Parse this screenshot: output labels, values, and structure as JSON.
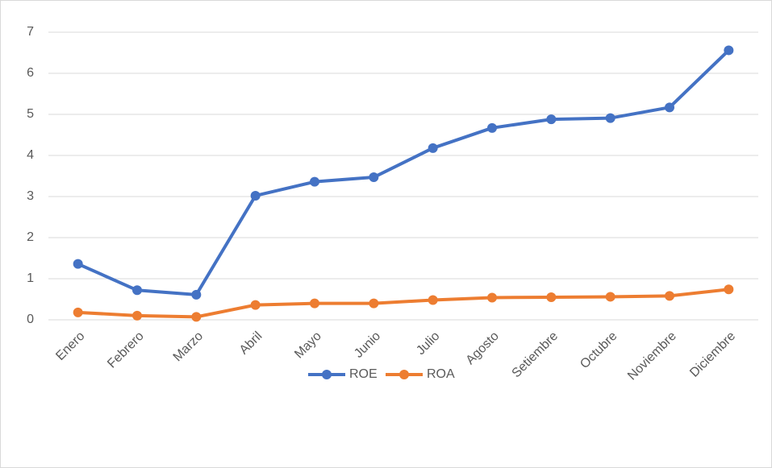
{
  "chart_data": {
    "type": "line",
    "categories": [
      "Enero",
      "Febrero",
      "Marzo",
      "Abril",
      "Mayo",
      "Junio",
      "Julio",
      "Agosto",
      "Setiembre",
      "Octubre",
      "Noviembre",
      "Diciembre"
    ],
    "series": [
      {
        "name": "ROE",
        "color": "#4472c4",
        "values": [
          1.36,
          0.72,
          0.61,
          3.02,
          3.36,
          3.47,
          4.18,
          4.67,
          4.88,
          4.91,
          5.17,
          6.56
        ]
      },
      {
        "name": "ROA",
        "color": "#ed7d31",
        "values": [
          0.18,
          0.1,
          0.07,
          0.36,
          0.4,
          0.4,
          0.48,
          0.54,
          0.55,
          0.56,
          0.58,
          0.74
        ]
      }
    ],
    "ylim": [
      0,
      7
    ],
    "yticks": [
      0,
      1,
      2,
      3,
      4,
      5,
      6,
      7
    ],
    "grid": true,
    "legend": "bottom"
  }
}
